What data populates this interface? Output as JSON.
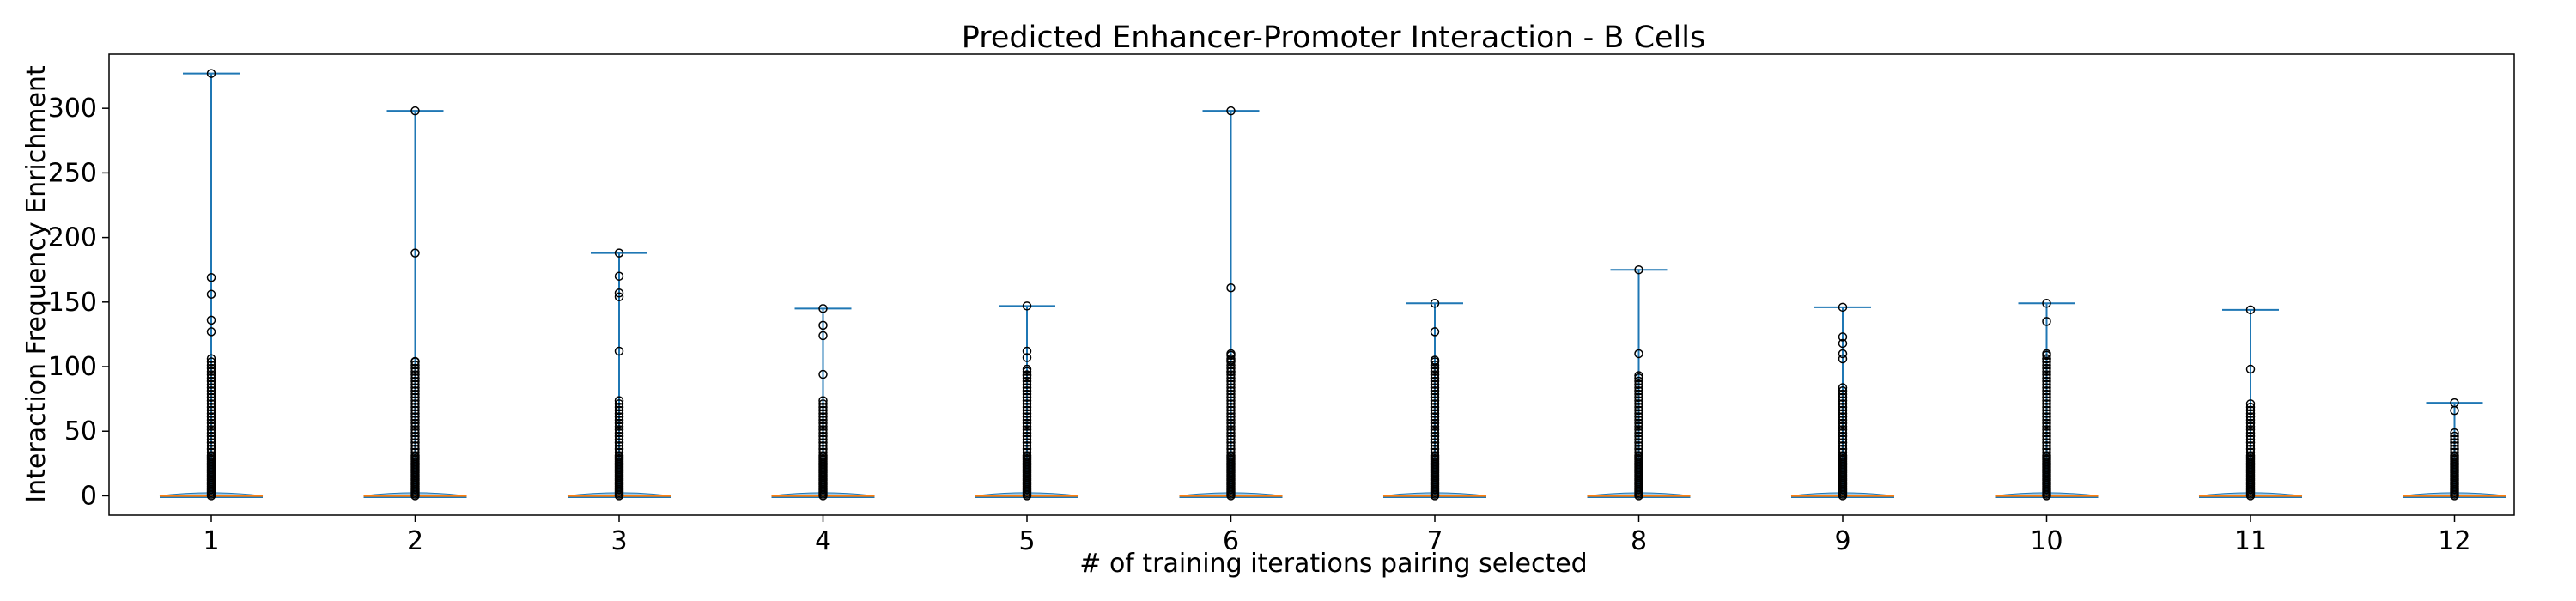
{
  "chart_data": {
    "type": "violin",
    "title": "Predicted Enhancer-Promoter Interaction - B Cells",
    "xlabel": "# of training iterations pairing selected",
    "ylabel": "Interaction Frequency Enrichment",
    "ylim": [
      -15,
      342
    ],
    "yticks": [
      0,
      50,
      100,
      150,
      200,
      250,
      300
    ],
    "categories": [
      "1",
      "2",
      "3",
      "4",
      "5",
      "6",
      "7",
      "8",
      "9",
      "10",
      "11",
      "12"
    ],
    "max_values": [
      327,
      298,
      188,
      145,
      147,
      298,
      149,
      175,
      146,
      149,
      144,
      72
    ],
    "median_values": [
      0,
      0,
      0,
      0,
      0,
      0,
      0,
      0,
      0,
      0,
      0,
      0
    ],
    "dense_outlier_top": [
      108,
      104,
      76,
      76,
      98,
      110,
      105,
      92,
      85,
      110,
      72,
      50
    ],
    "sparse_outliers": [
      [
        327,
        169,
        156,
        136,
        127
      ],
      [
        298,
        188,
        104
      ],
      [
        188,
        170,
        157,
        154,
        112
      ],
      [
        145,
        132,
        124,
        94
      ],
      [
        147,
        112,
        107,
        98,
        93
      ],
      [
        298,
        161,
        110,
        105,
        96
      ],
      [
        149,
        127,
        105
      ],
      [
        175,
        110,
        93
      ],
      [
        146,
        123,
        118,
        110,
        106
      ],
      [
        149,
        135,
        110,
        106
      ],
      [
        144,
        98
      ],
      [
        72,
        66
      ]
    ],
    "colors": {
      "violin": "#1f77b4",
      "median": "#ff7f0e",
      "outlier": "#000000"
    },
    "grid": false
  }
}
